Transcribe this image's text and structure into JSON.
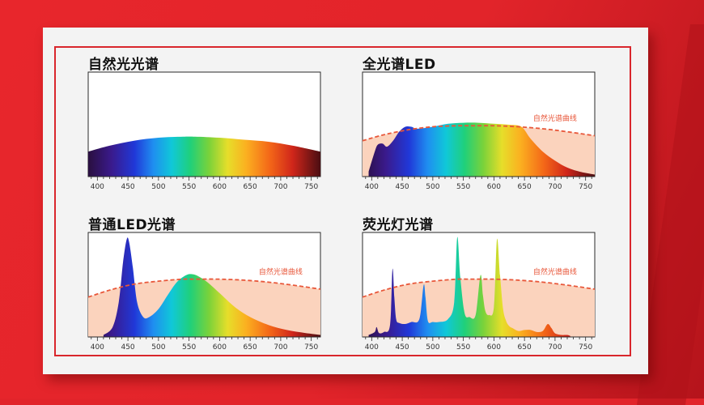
{
  "chart_data": [
    {
      "type": "area",
      "title": "自然光光谱",
      "x_ticks": [
        400,
        450,
        500,
        550,
        600,
        650,
        700,
        750
      ],
      "xlim": [
        385,
        765
      ],
      "ylim": [
        0,
        1
      ],
      "series": [
        {
          "x": [
            385,
            420,
            460,
            500,
            540,
            560,
            600,
            640,
            680,
            720,
            765
          ],
          "y": [
            0.25,
            0.31,
            0.36,
            0.39,
            0.4,
            0.4,
            0.39,
            0.37,
            0.35,
            0.31,
            0.25
          ]
        }
      ],
      "reference_label": ""
    },
    {
      "type": "area",
      "title": "全光谱LED",
      "x_ticks": [
        400,
        450,
        500,
        550,
        600,
        650,
        700,
        750
      ],
      "xlim": [
        385,
        765
      ],
      "ylim": [
        0,
        1
      ],
      "series": [
        {
          "x": [
            395,
            405,
            410,
            418,
            425,
            435,
            445,
            455,
            465,
            475,
            500,
            525,
            550,
            575,
            600,
            625,
            645,
            660,
            680,
            700,
            720,
            740,
            765
          ],
          "y": [
            0.05,
            0.25,
            0.32,
            0.33,
            0.3,
            0.36,
            0.45,
            0.5,
            0.5,
            0.48,
            0.5,
            0.53,
            0.54,
            0.54,
            0.53,
            0.52,
            0.5,
            0.38,
            0.25,
            0.16,
            0.09,
            0.05,
            0.02
          ]
        }
      ],
      "reference_label": "自然光谱曲线",
      "reference_curve": {
        "x": [
          385,
          420,
          460,
          500,
          540,
          560,
          600,
          640,
          680,
          720,
          765
        ],
        "y": [
          0.36,
          0.42,
          0.47,
          0.5,
          0.51,
          0.51,
          0.51,
          0.5,
          0.48,
          0.45,
          0.41
        ]
      }
    },
    {
      "type": "area",
      "title": "普通LED光谱",
      "x_ticks": [
        400,
        450,
        500,
        550,
        600,
        650,
        700,
        750
      ],
      "xlim": [
        385,
        765
      ],
      "ylim": [
        0,
        1
      ],
      "series": [
        {
          "x": [
            410,
            425,
            435,
            442,
            448,
            452,
            458,
            465,
            475,
            485,
            500,
            515,
            530,
            545,
            555,
            565,
            580,
            600,
            625,
            650,
            680,
            710,
            740,
            765
          ],
          "y": [
            0.02,
            0.1,
            0.35,
            0.75,
            0.98,
            0.95,
            0.7,
            0.35,
            0.2,
            0.2,
            0.28,
            0.42,
            0.55,
            0.62,
            0.63,
            0.61,
            0.55,
            0.44,
            0.3,
            0.2,
            0.12,
            0.07,
            0.04,
            0.02
          ]
        }
      ],
      "reference_label": "自然光谱曲线",
      "reference_curve": {
        "x": [
          385,
          420,
          460,
          500,
          540,
          560,
          600,
          640,
          680,
          720,
          765
        ],
        "y": [
          0.4,
          0.47,
          0.53,
          0.56,
          0.58,
          0.58,
          0.58,
          0.57,
          0.55,
          0.52,
          0.48
        ]
      }
    },
    {
      "type": "area",
      "title": "荧光灯光谱",
      "x_ticks": [
        400,
        450,
        500,
        550,
        600,
        650,
        700,
        750
      ],
      "xlim": [
        385,
        765
      ],
      "ylim": [
        0,
        1
      ],
      "series": [
        {
          "x": [
            395,
            405,
            408,
            412,
            420,
            430,
            434,
            437,
            440,
            445,
            455,
            465,
            478,
            485,
            488,
            492,
            500,
            510,
            525,
            535,
            540,
            545,
            552,
            560,
            570,
            578,
            582,
            586,
            592,
            600,
            605,
            610,
            615,
            620,
            625,
            630,
            640,
            650,
            660,
            670,
            680,
            688,
            694,
            698,
            702,
            710,
            720,
            725
          ],
          "y": [
            0.02,
            0.05,
            0.1,
            0.04,
            0.05,
            0.12,
            0.68,
            0.4,
            0.18,
            0.14,
            0.13,
            0.15,
            0.18,
            0.52,
            0.4,
            0.16,
            0.15,
            0.15,
            0.18,
            0.35,
            1.0,
            0.6,
            0.24,
            0.2,
            0.22,
            0.62,
            0.42,
            0.26,
            0.22,
            0.3,
            0.98,
            0.62,
            0.28,
            0.16,
            0.11,
            0.09,
            0.06,
            0.07,
            0.07,
            0.05,
            0.06,
            0.13,
            0.09,
            0.05,
            0.03,
            0.02,
            0.02,
            0.01
          ]
        }
      ],
      "reference_label": "自然光谱曲线",
      "reference_curve": {
        "x": [
          385,
          420,
          460,
          500,
          540,
          560,
          600,
          640,
          680,
          720,
          765
        ],
        "y": [
          0.4,
          0.47,
          0.53,
          0.56,
          0.58,
          0.58,
          0.58,
          0.57,
          0.55,
          0.52,
          0.48
        ]
      }
    }
  ]
}
